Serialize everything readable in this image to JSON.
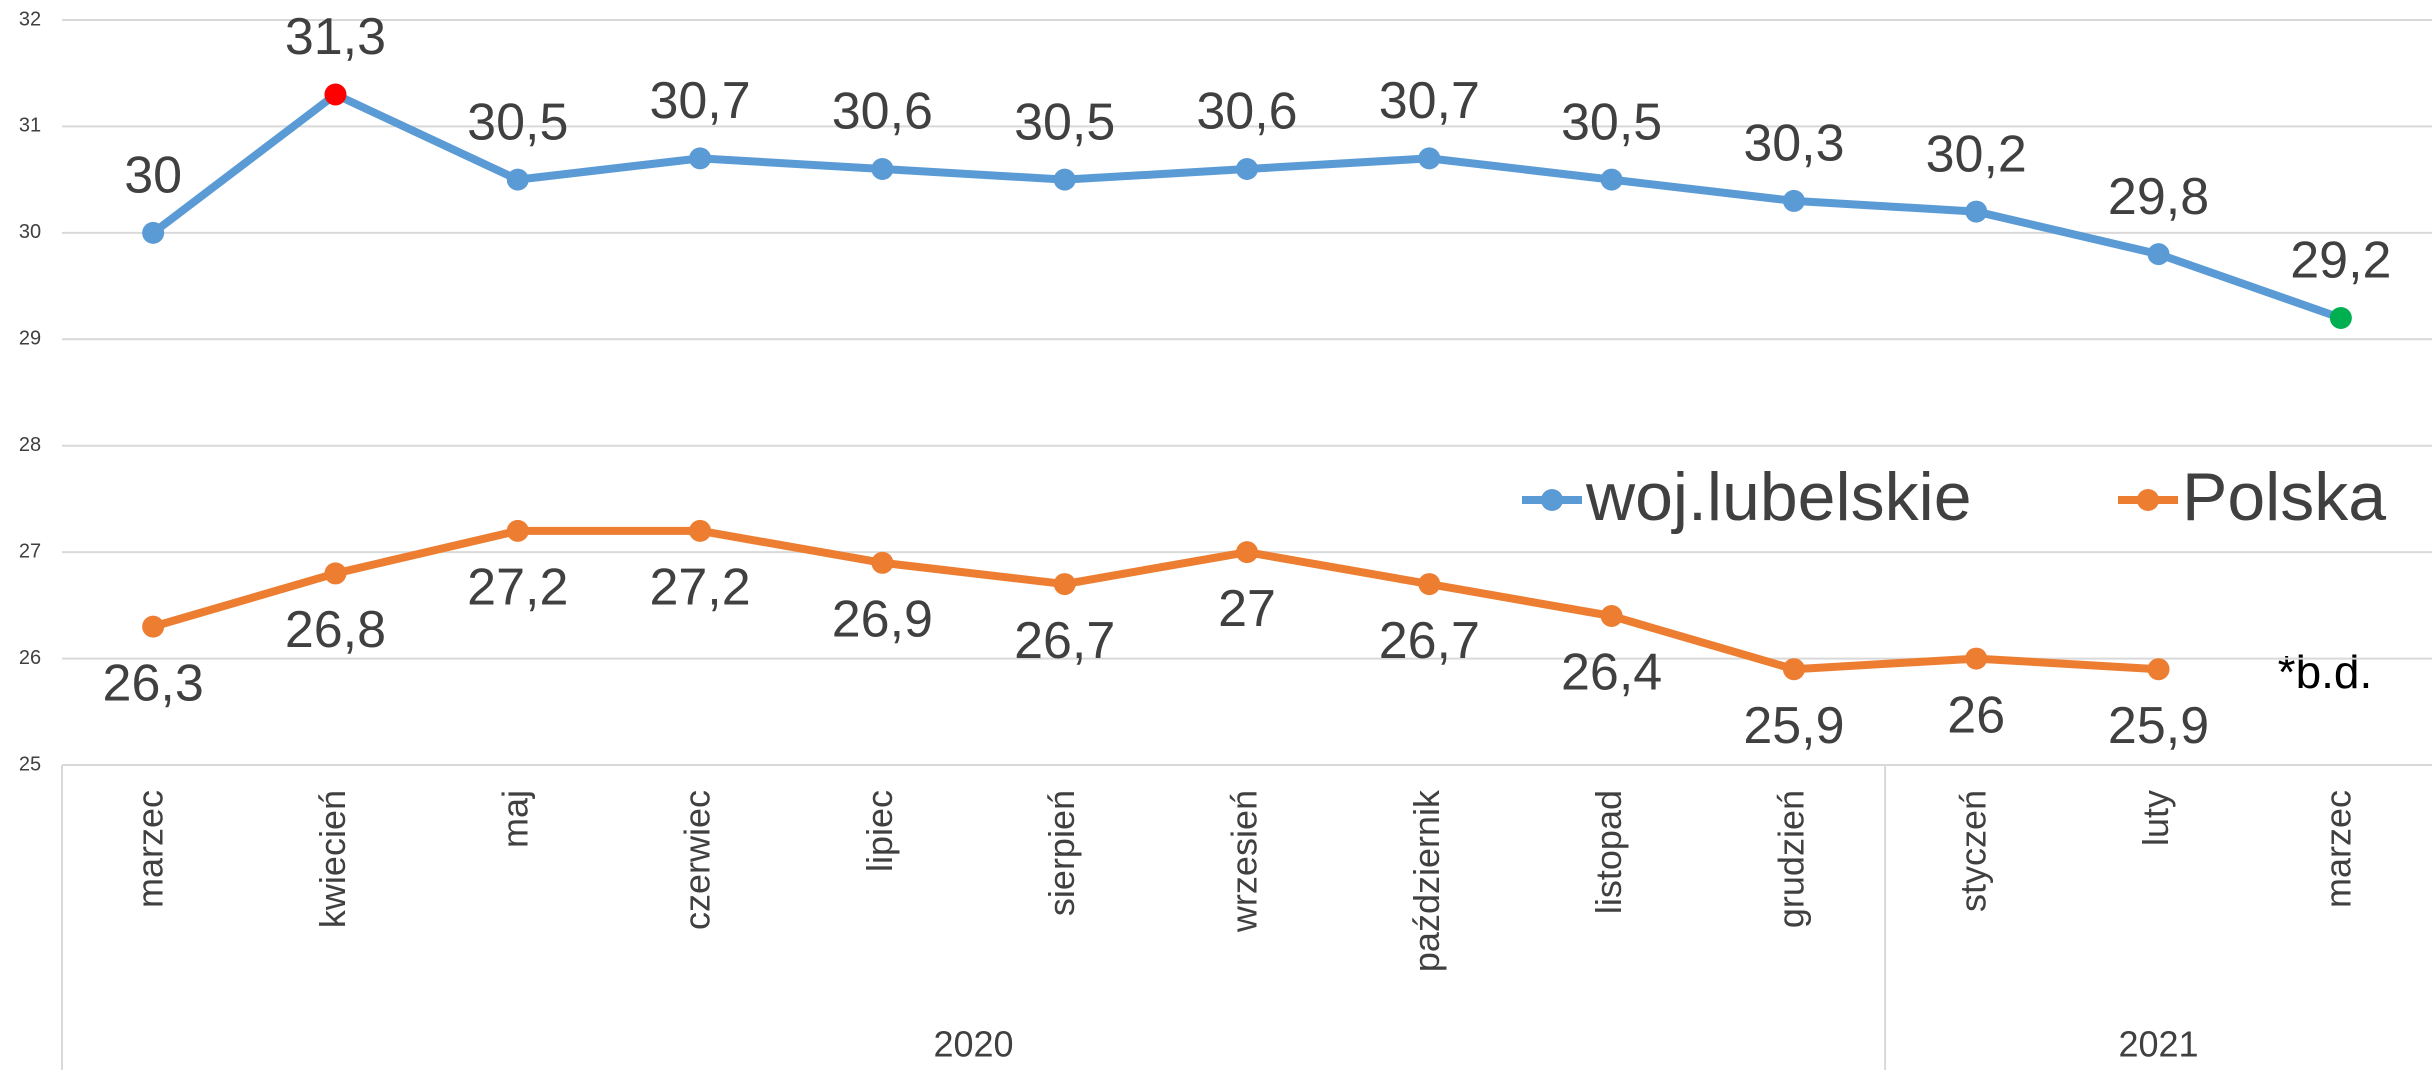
{
  "chart_data": {
    "type": "line",
    "category_groups": [
      {
        "label": "2020",
        "categories": [
          "marzec",
          "kwiecień",
          "maj",
          "czerwiec",
          "lipiec",
          "sierpień",
          "wrzesień",
          "październik",
          "listopad",
          "grudzień"
        ]
      },
      {
        "label": "2021",
        "categories": [
          "styczeń",
          "luty",
          "marzec"
        ]
      }
    ],
    "series": [
      {
        "name": "woj.lubelskie",
        "color": "#5b9bd5",
        "label_position": "above",
        "values": [
          30,
          31.3,
          30.5,
          30.7,
          30.6,
          30.5,
          30.6,
          30.7,
          30.5,
          30.3,
          30.2,
          29.8,
          29.2
        ],
        "value_labels": [
          "30",
          "31,3",
          "30,5",
          "30,7",
          "30,6",
          "30,5",
          "30,6",
          "30,7",
          "30,5",
          "30,3",
          "30,2",
          "29,8",
          "29,2"
        ],
        "point_colors": [
          null,
          "#ff0000",
          null,
          null,
          null,
          null,
          null,
          null,
          null,
          null,
          null,
          null,
          "#00b050"
        ]
      },
      {
        "name": "Polska",
        "color": "#ed7d31",
        "label_position": "below",
        "values": [
          26.3,
          26.8,
          27.2,
          27.2,
          26.9,
          26.7,
          27,
          26.7,
          26.4,
          25.9,
          26,
          25.9,
          null
        ],
        "value_labels": [
          "26,3",
          "26,8",
          "27,2",
          "27,2",
          "26,9",
          "26,7",
          "27",
          "26,7",
          "26,4",
          "25,9",
          "26",
          "25,9",
          null
        ]
      }
    ],
    "annotation": "*b.d.",
    "ylim": [
      25,
      32
    ],
    "yticks": [
      25,
      26,
      27,
      28,
      29,
      30,
      31,
      32
    ],
    "grid": true,
    "legend": "right"
  }
}
